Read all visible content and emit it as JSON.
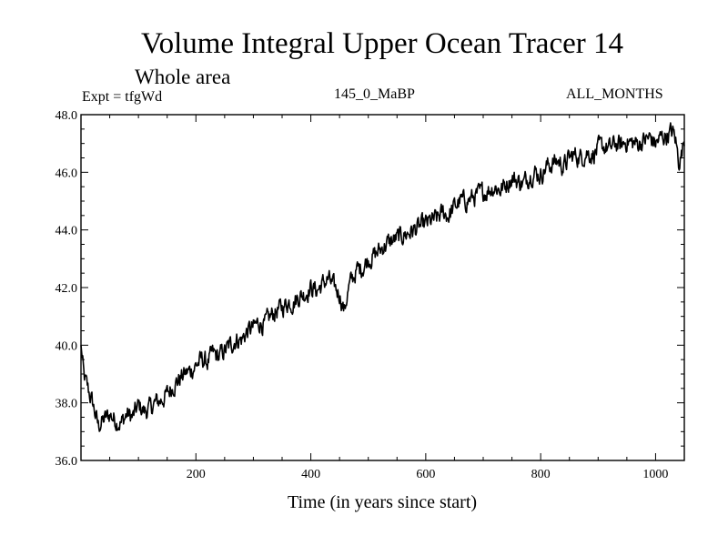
{
  "chart_data": {
    "type": "line",
    "title": "Volume Integral Upper Ocean Tracer 14",
    "subtitle": "Whole area",
    "experiment": "Expt = tfgWd",
    "run_label": "145_0_MaBP",
    "period_label": "ALL_MONTHS",
    "xlabel": "Time (in years since start)",
    "ylabel": "",
    "xlim": [
      0,
      1050
    ],
    "ylim": [
      36.0,
      48.0
    ],
    "x_ticks": [
      200,
      400,
      600,
      800,
      1000
    ],
    "x_tick_labels": [
      "200",
      "400",
      "600",
      "800",
      "1000"
    ],
    "y_ticks": [
      36,
      38,
      40,
      42,
      44,
      46,
      48
    ],
    "y_tick_labels": [
      "36.0",
      "38.0",
      "40.0",
      "42.0",
      "44.0",
      "46.0",
      "48.0"
    ],
    "line_color": "#000000",
    "series": [
      {
        "name": "Upper Ocean Tracer 14",
        "x": [
          0,
          5,
          10,
          15,
          20,
          25,
          30,
          40,
          50,
          60,
          70,
          80,
          90,
          100,
          110,
          120,
          130,
          140,
          150,
          160,
          170,
          180,
          190,
          200,
          210,
          220,
          230,
          240,
          250,
          260,
          270,
          280,
          290,
          300,
          310,
          320,
          330,
          340,
          350,
          360,
          370,
          380,
          390,
          400,
          410,
          420,
          430,
          440,
          450,
          458,
          465,
          470,
          480,
          490,
          500,
          510,
          520,
          530,
          540,
          550,
          560,
          570,
          580,
          590,
          600,
          610,
          620,
          630,
          640,
          650,
          660,
          670,
          680,
          690,
          700,
          710,
          720,
          730,
          740,
          750,
          760,
          770,
          780,
          790,
          800,
          810,
          820,
          830,
          840,
          850,
          860,
          870,
          880,
          890,
          900,
          910,
          920,
          930,
          940,
          950,
          960,
          970,
          980,
          990,
          1000,
          1010,
          1020,
          1030,
          1035,
          1040,
          1045,
          1050
        ],
        "values": [
          40.0,
          38.9,
          38.6,
          38.3,
          38.0,
          37.6,
          37.2,
          37.4,
          37.6,
          37.4,
          37.3,
          37.6,
          37.5,
          37.9,
          37.7,
          37.8,
          38.0,
          38.1,
          38.3,
          38.6,
          38.8,
          39.0,
          39.1,
          39.3,
          39.5,
          39.4,
          39.7,
          39.6,
          39.8,
          40.0,
          40.2,
          40.2,
          40.5,
          40.6,
          40.8,
          40.7,
          41.0,
          41.2,
          41.3,
          41.5,
          41.5,
          41.7,
          41.8,
          42.0,
          41.9,
          42.1,
          42.3,
          42.0,
          41.8,
          41.2,
          41.9,
          42.2,
          42.6,
          42.7,
          43.0,
          43.1,
          43.3,
          43.5,
          43.6,
          43.7,
          43.8,
          43.9,
          44.0,
          44.1,
          44.2,
          44.3,
          44.4,
          44.6,
          44.5,
          44.8,
          45.0,
          45.0,
          45.1,
          45.2,
          45.3,
          45.4,
          45.5,
          45.4,
          45.6,
          45.8,
          45.7,
          45.6,
          45.9,
          46.0,
          45.9,
          46.2,
          46.3,
          46.4,
          46.2,
          46.5,
          46.6,
          46.5,
          46.7,
          46.6,
          46.8,
          46.9,
          46.8,
          47.0,
          46.9,
          47.1,
          47.0,
          47.0,
          47.1,
          47.2,
          47.0,
          47.2,
          47.3,
          47.4,
          47.1,
          46.4,
          46.6,
          47.2
        ]
      }
    ]
  }
}
